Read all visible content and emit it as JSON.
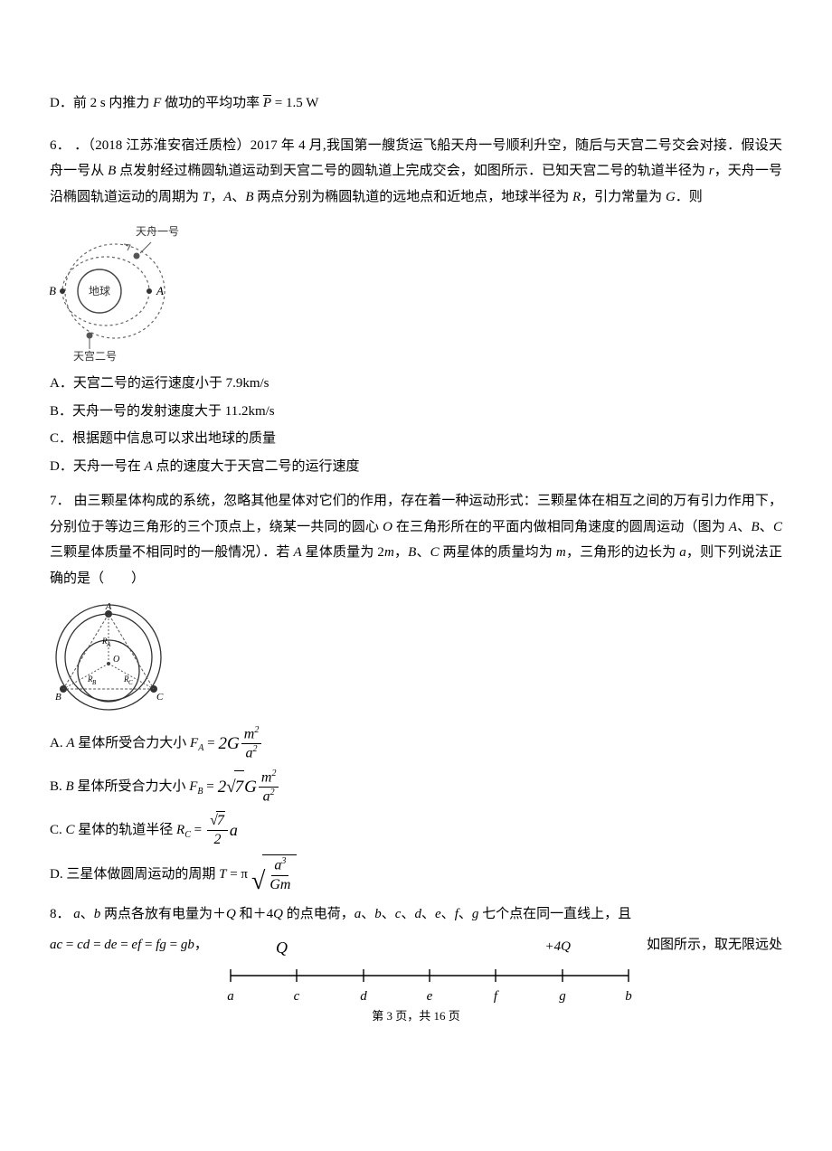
{
  "q5": {
    "optD": "D．前 2 s 内推力 <i>F</i> 做功的平均功率 <span class=\"overline italic\">P</span> = 1.5 W"
  },
  "q6": {
    "num": "6．",
    "stem": "．（2018 江苏淮安宿迁质检）2017 年 4 月,我国第一艘货运飞船天舟一号顺利升空，随后与天宫二号交会对接．假设天舟一号从 <span class=\"italic\">B</span> 点发射经过椭圆轨道运动到天宫二号的圆轨道上完成交会，如图所示．已知天宫二号的轨道半径为 <span class=\"italic\">r</span>，天舟一号沿椭圆轨道运动的周期为 <span class=\"italic\">T</span>，<span class=\"italic\">A</span>、<span class=\"italic\">B</span> 两点分别为椭圆轨道的远地点和近地点，地球半径为 <span class=\"italic\">R</span>，引力常量为 <span class=\"italic\">G</span>．则",
    "labels": {
      "tz": "天舟一号",
      "tg": "天宫二号",
      "earth": "地球",
      "A": "A",
      "B": "B"
    },
    "optA": "A．天宫二号的运行速度小于 7.9km/s",
    "optB": "B．天舟一号的发射速度大于 11.2km/s",
    "optC": "C．根据题中信息可以求出地球的质量",
    "optD": "D．天舟一号在 <span class=\"italic\">A</span> 点的速度大于天宫二号的运行速度"
  },
  "q7": {
    "num": "7．",
    "stem": "由三颗星体构成的系统，忽略其他星体对它们的作用，存在着一种运动形式：三颗星体在相互之间的万有引力作用下，分别位于等边三角形的三个顶点上，绕某一共同的圆心 <span class=\"italic\">O</span> 在三角形所在的平面内做相同角速度的圆周运动（图为 <span class=\"italic\">A</span>、<span class=\"italic\">B</span>、<span class=\"italic\">C</span> 三颗星体质量不相同时的一般情况）．若 <span class=\"italic\">A</span> 星体质量为 2<span class=\"italic\">m</span>，<span class=\"italic\">B</span>、<span class=\"italic\">C</span> 两星体的质量均为 <span class=\"italic\">m</span>，三角形的边长为 <span class=\"italic\">a</span>，则下列说法正确的是（　　）",
    "optA_pre": "A. <span class=\"italic\">A</span> 星体所受合力大小 <span class=\"italic\">F<span class=\"sub\">A</span></span> = ",
    "optA_coef": "2G",
    "optA_num": "m<span class=\"sup\">2</span>",
    "optA_den": "a<span class=\"sup\">2</span>",
    "optB_pre": "B. <span class=\"italic\">B</span> 星体所受合力大小 <span class=\"italic\">F<span class=\"sub\">B</span></span> = ",
    "optB_coef_pre": "2",
    "optB_coef_sqrt": "7",
    "optB_coef_post": "G",
    "optB_num": "m<span class=\"sup\">2</span>",
    "optB_den": "a<span class=\"sup\">2</span>",
    "optC_pre": "C. <span class=\"italic\">C</span> 星体的轨道半径 <span class=\"italic\">R<span class=\"sub\">C</span></span> = ",
    "optC_num_sqrt": "7",
    "optC_den": "2",
    "optC_post": " a",
    "optD_pre": "D. 三星体做圆周运动的周期 <span class=\"italic\">T</span> = π",
    "optD_num": "a<span class=\"sup\">3</span>",
    "optD_den": "Gm"
  },
  "q8": {
    "num": "8．",
    "stem": "<span class=\"italic\">a</span>、<span class=\"italic\">b</span> 两点各放有电量为＋<span class=\"italic\">Q</span> 和＋4<span class=\"italic\">Q</span> 的点电荷，<span class=\"italic\">a</span>、<span class=\"italic\">b</span>、<span class=\"italic\">c</span>、<span class=\"italic\">d</span>、<span class=\"italic\">e</span>、<span class=\"italic\">f</span>、<span class=\"italic\">g</span> 七个点在同一直线上，且",
    "eq": "<span class=\"italic\">ac</span> = <span class=\"italic\">cd</span> = <span class=\"italic\">de</span> = <span class=\"italic\">ef</span> = <span class=\"italic\">fg</span> = <span class=\"italic\">gb</span>，",
    "tail": "如图所示，取无限远处",
    "Qleft": "Q",
    "Qright": "+4Q",
    "pts": [
      "a",
      "c",
      "d",
      "e",
      "f",
      "g",
      "b"
    ]
  },
  "footer": {
    "page": "第 3 页，共 16 页"
  }
}
